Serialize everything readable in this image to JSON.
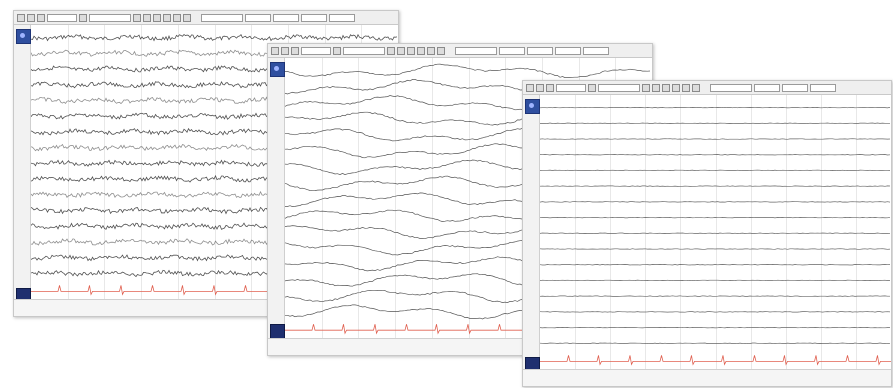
{
  "windows": [
    {
      "id": "w1",
      "channels": 16,
      "trace_style": "dense",
      "time_divisions": 10,
      "ecg_color": "#e06050",
      "trace_color": "#333333"
    },
    {
      "id": "w2",
      "channels": 16,
      "trace_style": "slow",
      "time_divisions": 10,
      "ecg_color": "#e06050",
      "trace_color": "#444444"
    },
    {
      "id": "w3",
      "channels": 16,
      "trace_style": "flat",
      "time_divisions": 10,
      "ecg_color": "#e06050",
      "trace_color": "#555555"
    }
  ],
  "toolbar": {
    "icons": [
      "prev-page-icon",
      "next-page-icon",
      "play-icon",
      "stop-icon",
      "zoom-in-icon",
      "zoom-out-icon",
      "montage-icon",
      "filter-icon",
      "sensitivity-icon",
      "print-icon"
    ]
  }
}
